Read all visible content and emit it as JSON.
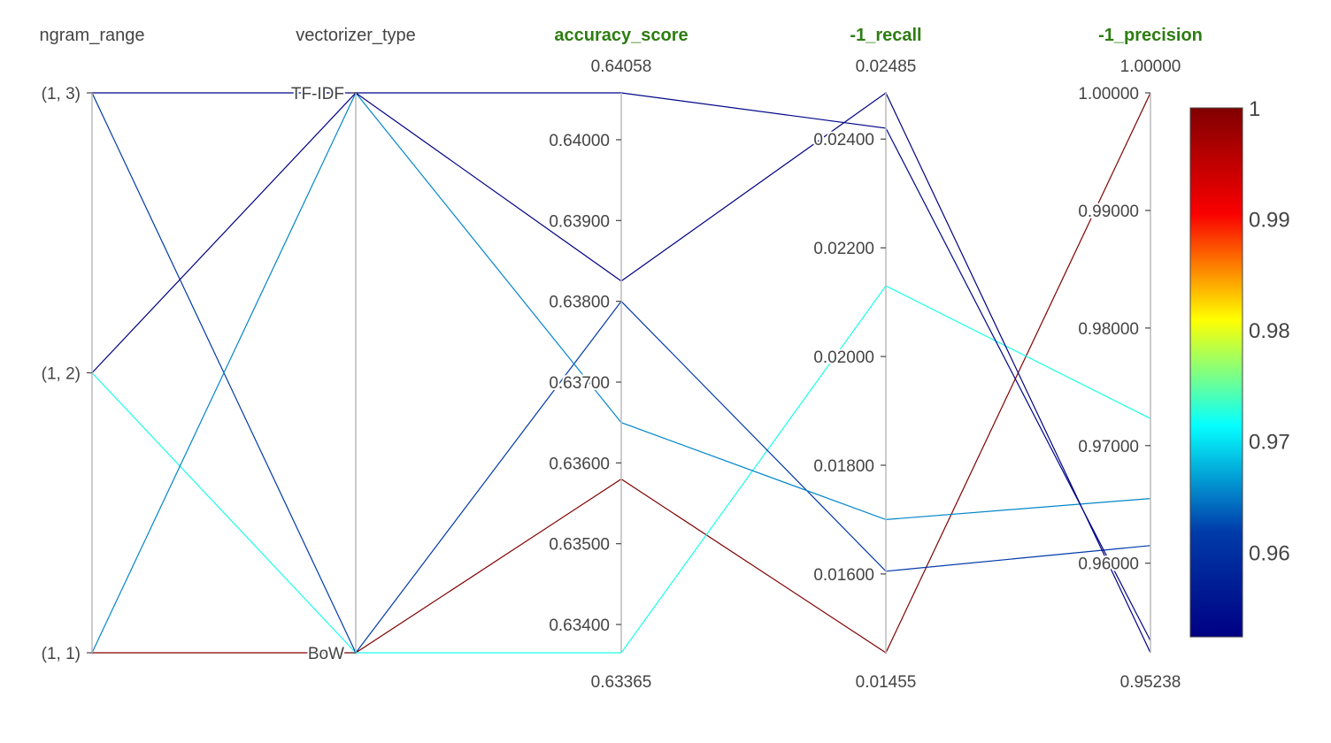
{
  "chart_data": {
    "type": "parallel_coordinates",
    "title": "",
    "highlight_color": "#2e7d12",
    "dimensions": [
      {
        "label": "ngram_range",
        "kind": "categorical",
        "colored_label": false,
        "categories": [
          "(1, 1)",
          "(1, 2)",
          "(1, 3)"
        ]
      },
      {
        "label": "vectorizer_type",
        "kind": "categorical",
        "colored_label": false,
        "categories": [
          "BoW",
          "TF-IDF"
        ]
      },
      {
        "label": "accuracy_score",
        "kind": "numeric",
        "colored_label": true,
        "range": [
          0.63365,
          0.64058
        ],
        "range_labels": {
          "max": "0.64058",
          "min": "0.63365"
        },
        "ticks": [
          {
            "value": 0.634,
            "label": "0.63400"
          },
          {
            "value": 0.635,
            "label": "0.63500"
          },
          {
            "value": 0.636,
            "label": "0.63600"
          },
          {
            "value": 0.637,
            "label": "0.63700"
          },
          {
            "value": 0.638,
            "label": "0.63800"
          },
          {
            "value": 0.639,
            "label": "0.63900"
          },
          {
            "value": 0.64,
            "label": "0.64000"
          }
        ]
      },
      {
        "label": "-1_recall",
        "kind": "numeric",
        "colored_label": true,
        "range": [
          0.01455,
          0.02485
        ],
        "range_labels": {
          "max": "0.02485",
          "min": "0.01455"
        },
        "ticks": [
          {
            "value": 0.016,
            "label": "0.01600"
          },
          {
            "value": 0.018,
            "label": "0.01800"
          },
          {
            "value": 0.02,
            "label": "0.02000"
          },
          {
            "value": 0.022,
            "label": "0.02200"
          },
          {
            "value": 0.024,
            "label": "0.02400"
          }
        ]
      },
      {
        "label": "-1_precision",
        "kind": "numeric",
        "colored_label": true,
        "range": [
          0.95238,
          1.0
        ],
        "range_labels": {
          "max": "1.00000",
          "min": "0.95238"
        },
        "ticks": [
          {
            "value": 0.96,
            "label": "0.96000"
          },
          {
            "value": 0.97,
            "label": "0.97000"
          },
          {
            "value": 0.98,
            "label": "0.98000"
          },
          {
            "value": 0.99,
            "label": "0.99000"
          },
          {
            "value": 1.0,
            "label": "1.00000"
          }
        ]
      }
    ],
    "rows": [
      {
        "values": [
          "(1, 1)",
          "BoW",
          0.6358,
          0.01455,
          1.0
        ],
        "color_value": 1.0
      },
      {
        "values": [
          "(1, 2)",
          "BoW",
          0.63365,
          0.0213,
          0.9723
        ],
        "color_value": 0.9723
      },
      {
        "values": [
          "(1, 3)",
          "BoW",
          0.638,
          0.01605,
          0.9615
        ],
        "color_value": 0.9615
      },
      {
        "values": [
          "(1, 1)",
          "TF-IDF",
          0.6365,
          0.017,
          0.9655
        ],
        "color_value": 0.9655
      },
      {
        "values": [
          "(1, 2)",
          "TF-IDF",
          0.63825,
          0.02485,
          0.95238
        ],
        "color_value": 0.9524
      },
      {
        "values": [
          "(1, 3)",
          "TF-IDF",
          0.64058,
          0.0242,
          0.9534
        ],
        "color_value": 0.9534
      }
    ],
    "colorscale": {
      "name": "Jet",
      "min": 0.95238,
      "max": 1.0,
      "stops": [
        "#000083",
        "#003caa",
        "#05ffff",
        "#ffff00",
        "#fa0000",
        "#800000"
      ],
      "ticks": [
        {
          "value": 0.96,
          "label": "0.96"
        },
        {
          "value": 0.97,
          "label": "0.97"
        },
        {
          "value": 0.98,
          "label": "0.98"
        },
        {
          "value": 0.99,
          "label": "0.99"
        },
        {
          "value": 1.0,
          "label": "1"
        }
      ]
    }
  }
}
